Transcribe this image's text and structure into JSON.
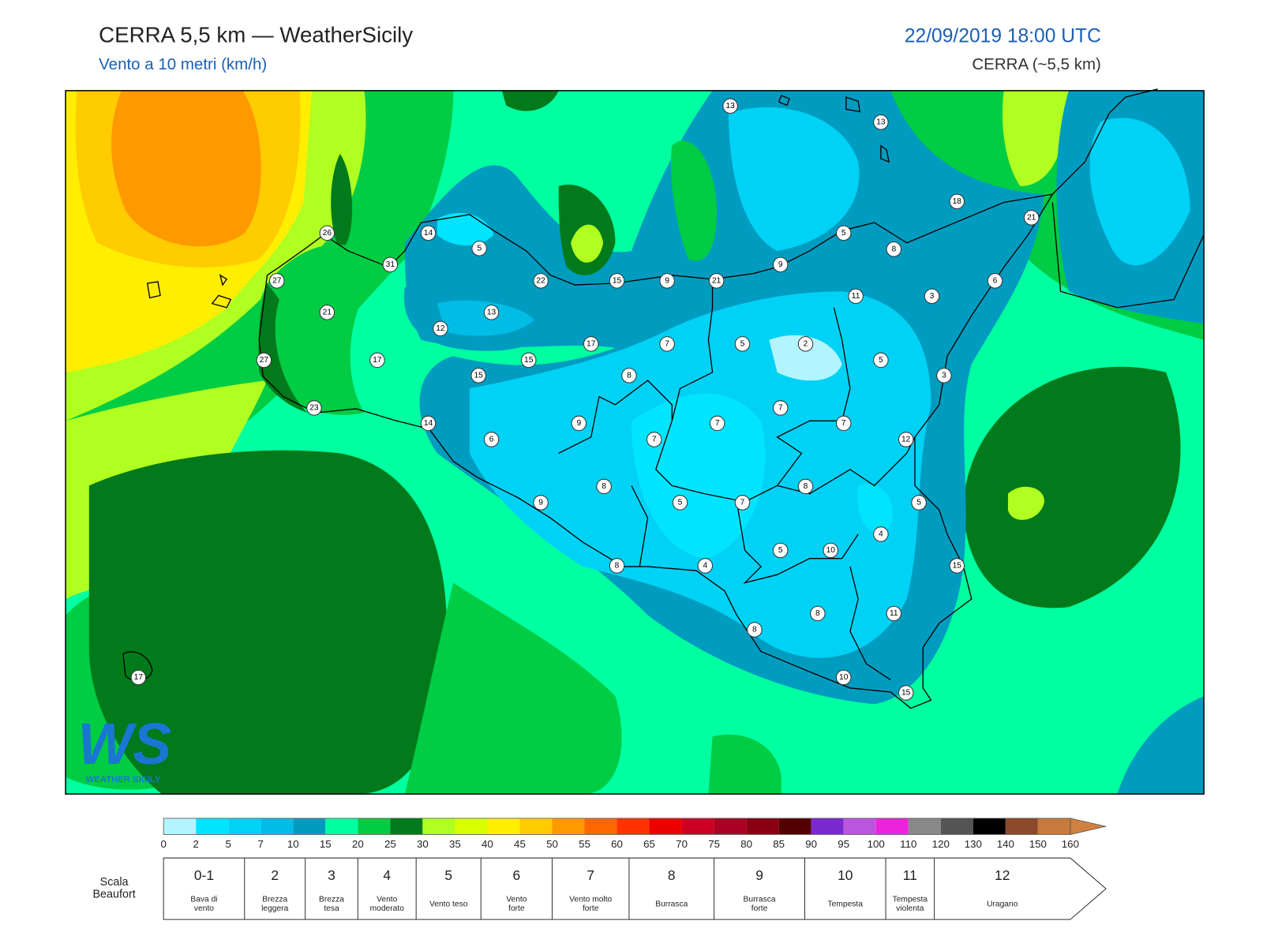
{
  "header": {
    "title": "CERRA 5,5 km — WeatherSicily",
    "subtitle": "Vento a 10 metri (km/h)",
    "datetime": "22/09/2019 18:00 UTC",
    "model": "CERRA (~5,5 km)"
  },
  "map": {
    "stations": [
      13,
      13,
      18,
      21,
      26,
      14,
      5,
      5,
      8,
      31,
      27,
      22,
      15,
      9,
      21,
      9,
      6,
      11,
      3,
      21,
      13,
      12,
      17,
      7,
      5,
      2,
      17,
      15,
      5,
      27,
      15,
      8,
      3,
      23,
      7,
      14,
      9,
      7,
      7,
      6,
      7,
      12,
      8,
      8,
      9,
      5,
      7,
      5,
      4,
      5,
      10,
      8,
      4,
      15,
      8,
      11,
      8,
      10,
      15,
      17
    ]
  },
  "logo": {
    "text": "WS",
    "subtitle": "WEATHER SICILY"
  },
  "colorbar": {
    "ticks": [
      0,
      2,
      5,
      7,
      10,
      15,
      20,
      25,
      30,
      35,
      40,
      45,
      50,
      55,
      60,
      65,
      70,
      75,
      80,
      85,
      90,
      95,
      100,
      110,
      120,
      130,
      140,
      150,
      160
    ],
    "colors": [
      "#b3f5ff",
      "#00e5ff",
      "#00d2f5",
      "#00bde6",
      "#009cc0",
      "#00ffa0",
      "#00cc44",
      "#007a1a",
      "#b0ff20",
      "#d8ff00",
      "#ffee00",
      "#ffcc00",
      "#ff9900",
      "#ff6600",
      "#ff3300",
      "#ee0000",
      "#cc0022",
      "#aa0022",
      "#880011",
      "#550000",
      "#7a2ad0",
      "#bb55dd",
      "#ee22dd",
      "#888888",
      "#555555",
      "#000000",
      "#8b4a2a",
      "#c77a3e"
    ],
    "over_color": "#d08040"
  },
  "beaufort": {
    "title": [
      "Scala",
      "Beaufort"
    ],
    "forces": [
      "0-1",
      "2",
      "3",
      "4",
      "5",
      "6",
      "7",
      "8",
      "9",
      "10",
      "11",
      "12"
    ],
    "names": [
      [
        "Bava di",
        "vento"
      ],
      [
        "Brezza",
        "leggera"
      ],
      [
        "Brezza",
        "tesa"
      ],
      [
        "Vento",
        "moderato"
      ],
      [
        "Vento teso"
      ],
      [
        "Vento",
        "forte"
      ],
      [
        "Vento molto",
        "forte"
      ],
      [
        "Burrasca"
      ],
      [
        "Burrasca",
        "forte"
      ],
      [
        "Tempesta"
      ],
      [
        "Tempesta",
        "violenta"
      ],
      [
        "Uragano"
      ]
    ]
  }
}
